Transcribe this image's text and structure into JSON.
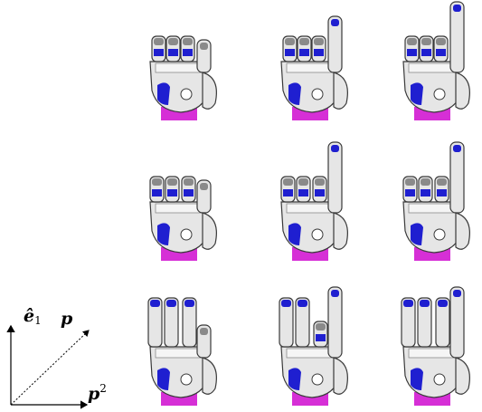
{
  "figure": {
    "rows": 3,
    "cols": 3,
    "hands": [
      {
        "row": 0,
        "col": 0,
        "extended": [
          0,
          0,
          0,
          0
        ],
        "thumb_up": false,
        "spread": 0
      },
      {
        "row": 0,
        "col": 1,
        "extended": [
          0,
          0,
          0,
          1
        ],
        "thumb_up": false,
        "spread": 0
      },
      {
        "row": 0,
        "col": 2,
        "extended": [
          0,
          0,
          0,
          1
        ],
        "thumb_up": true,
        "spread": 0
      },
      {
        "row": 1,
        "col": 0,
        "extended": [
          0,
          0,
          0,
          0
        ],
        "thumb_up": false,
        "spread": 1
      },
      {
        "row": 1,
        "col": 1,
        "extended": [
          0,
          0,
          0,
          1
        ],
        "thumb_up": true,
        "spread": 1
      },
      {
        "row": 1,
        "col": 2,
        "extended": [
          0,
          0,
          0,
          1
        ],
        "thumb_up": true,
        "spread": 1
      },
      {
        "row": 2,
        "col": 0,
        "extended": [
          1,
          1,
          1,
          0
        ],
        "thumb_up": false,
        "spread": 2
      },
      {
        "row": 2,
        "col": 1,
        "extended": [
          1,
          1,
          0,
          1
        ],
        "thumb_up": true,
        "spread": 2
      },
      {
        "row": 2,
        "col": 2,
        "extended": [
          1,
          1,
          1,
          1
        ],
        "thumb_up": true,
        "spread": 2
      }
    ],
    "colors": {
      "metal": "#e6e6e6",
      "metal_dark": "#8a8a8a",
      "outline": "#3a3a3a",
      "accent": "#1f1fd0",
      "wrist": "#d62fd6"
    }
  },
  "axes": {
    "e1_label": "ê",
    "e1_sub": "1",
    "p_label": "p",
    "p2_label": "p",
    "p2_sup": "2"
  }
}
